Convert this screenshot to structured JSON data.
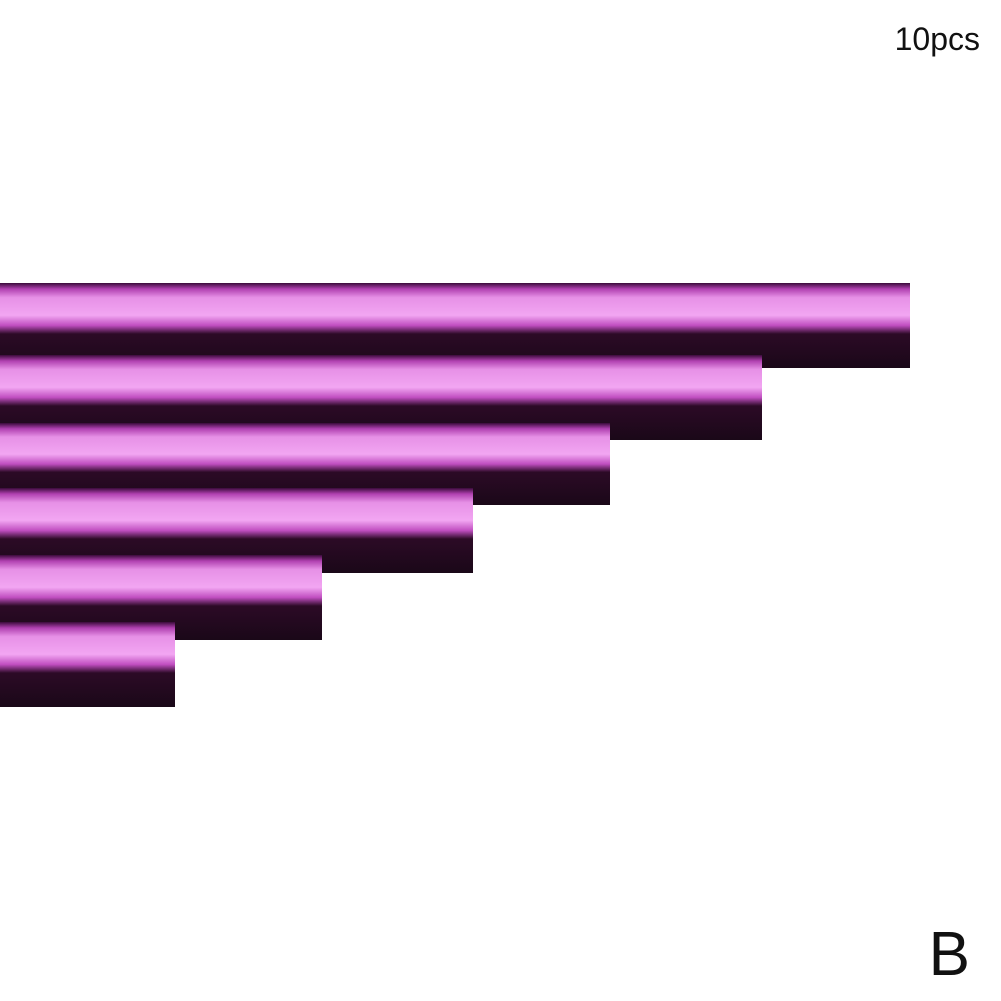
{
  "label": "10pcs",
  "variant": "B"
}
